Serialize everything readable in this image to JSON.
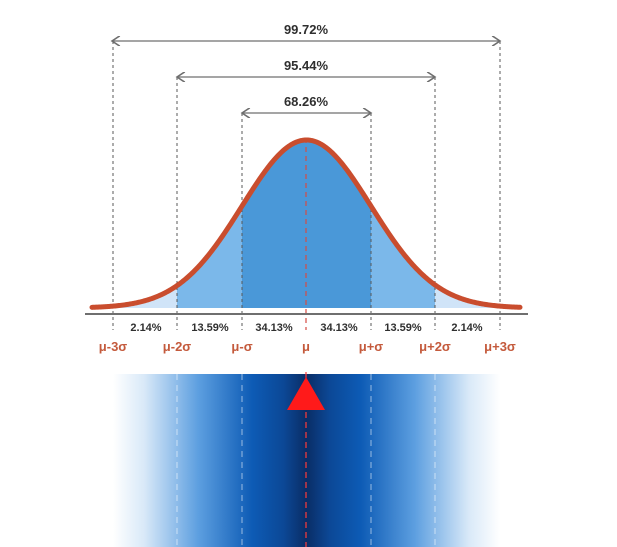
{
  "diagram": {
    "intervals": [
      {
        "label": "99.72%"
      },
      {
        "label": "95.44%"
      },
      {
        "label": "68.26%"
      }
    ],
    "segment_percents": [
      "2.14%",
      "13.59%",
      "34.13%",
      "34.13%",
      "13.59%",
      "2.14%"
    ],
    "axis_labels": [
      "μ-3σ",
      "μ-2σ",
      "μ-σ",
      "μ",
      "μ+σ",
      "μ+2σ",
      "μ+3σ"
    ],
    "colors": {
      "curve": "#c94d2e",
      "fill_outer": "#d0e4f8",
      "fill_second": "#7bb8ea",
      "fill_center": "#4a98d8",
      "axis_label": "#c45a3c",
      "text": "#2f2f2f",
      "marker": "#ff1a1a",
      "band_dark": "#0a2d66",
      "band_mid": "#0d5bb5",
      "band_light": "#ffffff"
    },
    "marker_icon": "red-triangle-marker"
  }
}
